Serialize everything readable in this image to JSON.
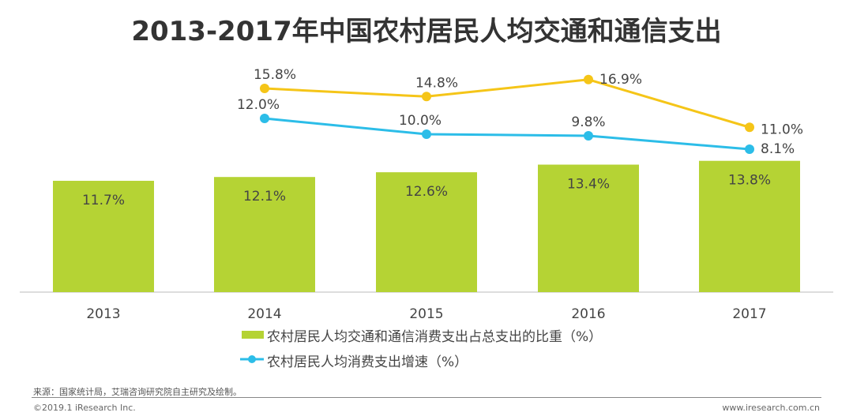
{
  "chart_data": {
    "type": "bar+line",
    "title": "2013-2017年中国农村居民人均交通和通信支出",
    "categories": [
      "2013",
      "2014",
      "2015",
      "2016",
      "2017"
    ],
    "series": [
      {
        "name": "农村居民人均交通和通信消费支出占总支出的比重（%）",
        "type": "bar",
        "color": "#b5d334",
        "values": [
          11.7,
          12.1,
          12.6,
          13.4,
          13.8
        ],
        "labels": [
          "11.7%",
          "12.1%",
          "12.6%",
          "13.4%",
          "13.8%"
        ]
      },
      {
        "type": "line",
        "color": "#f5c518",
        "values": [
          null,
          15.8,
          14.8,
          16.9,
          11.0
        ],
        "labels": [
          null,
          "15.8%",
          "14.8%",
          "16.9%",
          "11.0%"
        ]
      },
      {
        "name": "农村居民人均消费支出增速（%）",
        "type": "line",
        "color": "#2cbde8",
        "values": [
          null,
          12.0,
          10.0,
          9.8,
          8.1
        ],
        "labels": [
          null,
          "12.0%",
          "10.0%",
          "9.8%",
          "8.1%"
        ]
      }
    ],
    "grid": false,
    "legend": "bottom"
  },
  "footer": {
    "source": "来源：国家统计局，艾瑞咨询研究院自主研究及绘制。",
    "copyright": "©2019.1 iResearch Inc.",
    "website": "www.iresearch.com.cn"
  }
}
